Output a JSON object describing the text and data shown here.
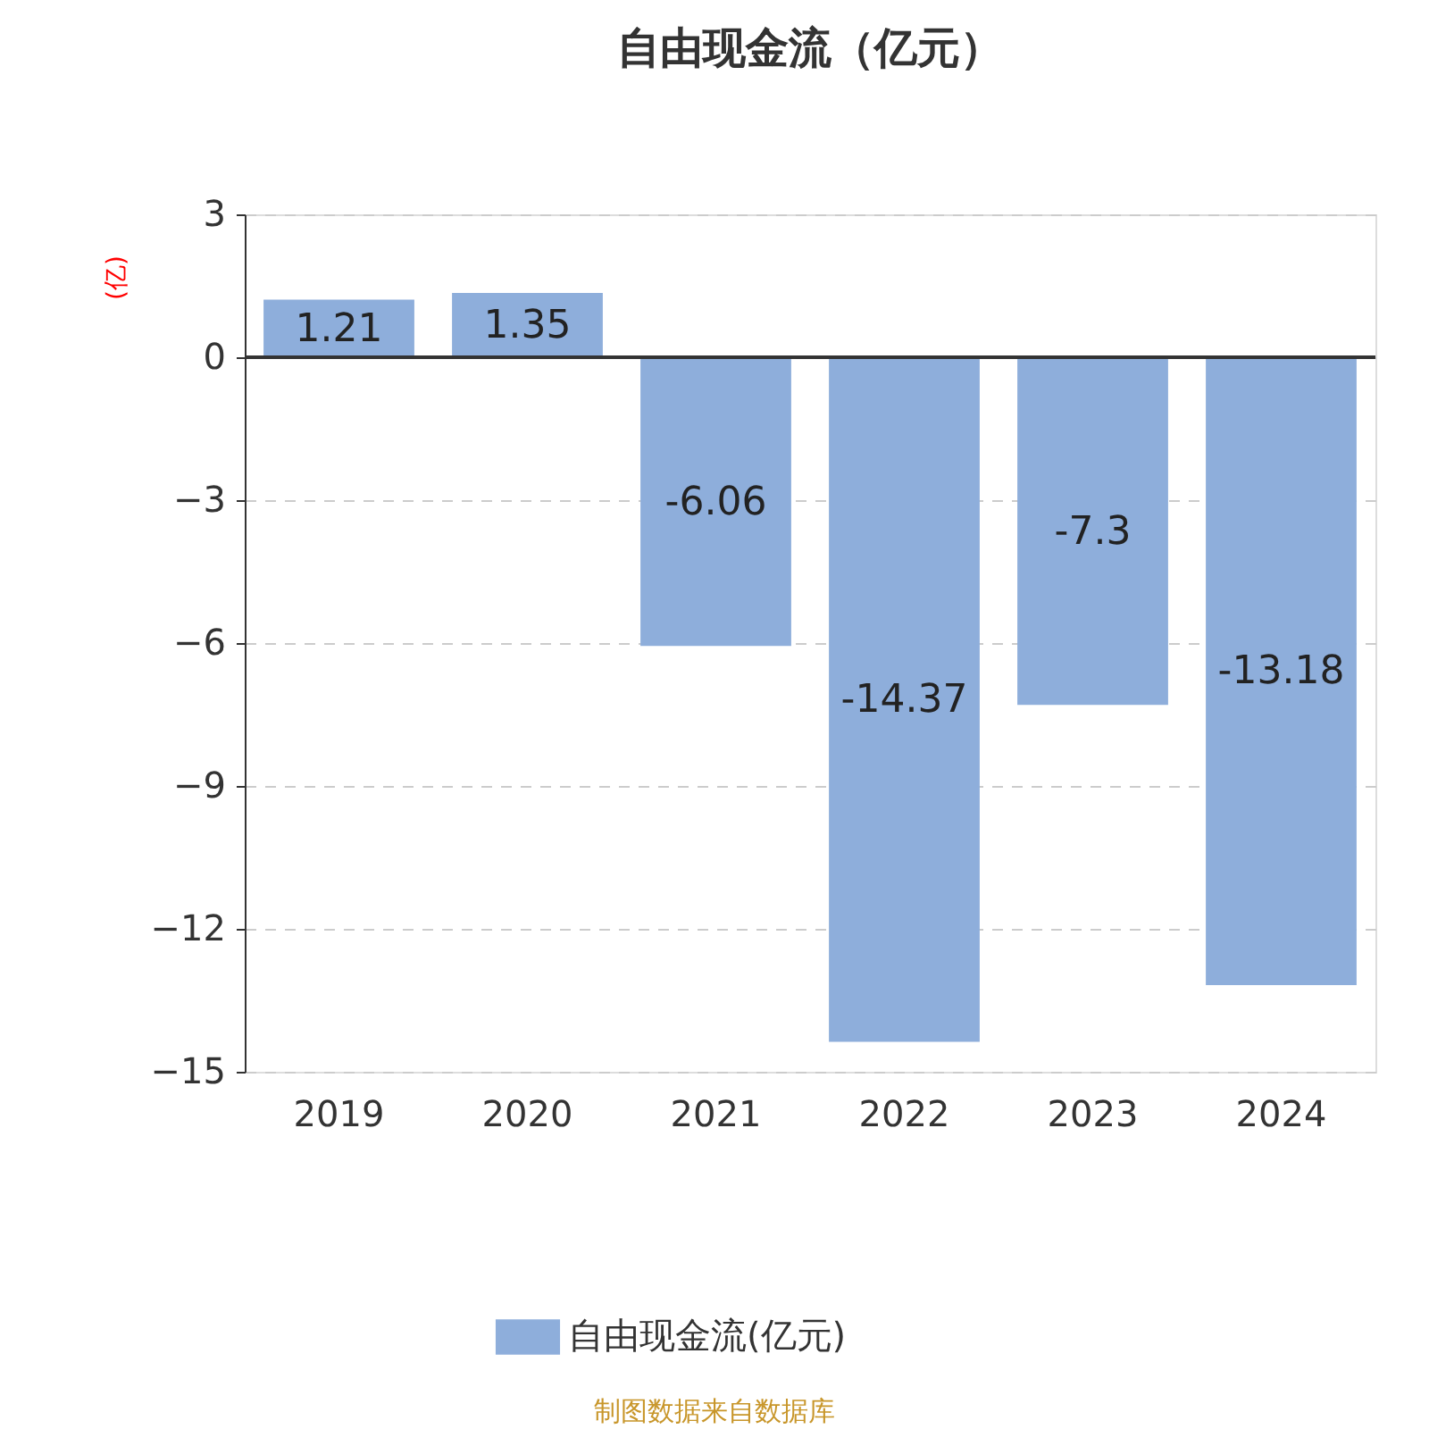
{
  "chart_data": {
    "type": "bar",
    "title": "自由现金流（亿元）",
    "ylabel": "(亿)",
    "categories": [
      "2019",
      "2020",
      "2021",
      "2022",
      "2023",
      "2024"
    ],
    "series": [
      {
        "name": "自由现金流(亿元)",
        "color": "#8eaedb",
        "values": [
          1.21,
          1.35,
          -6.06,
          -14.37,
          -7.3,
          -13.18
        ]
      }
    ],
    "ylim": [
      -15,
      3
    ],
    "yticks": [
      3,
      0,
      -3,
      -6,
      -9,
      -12,
      -15
    ],
    "grid": "y",
    "legend": "bottom",
    "data_labels": true,
    "annotations": [
      "制图数据来自数据库"
    ]
  }
}
